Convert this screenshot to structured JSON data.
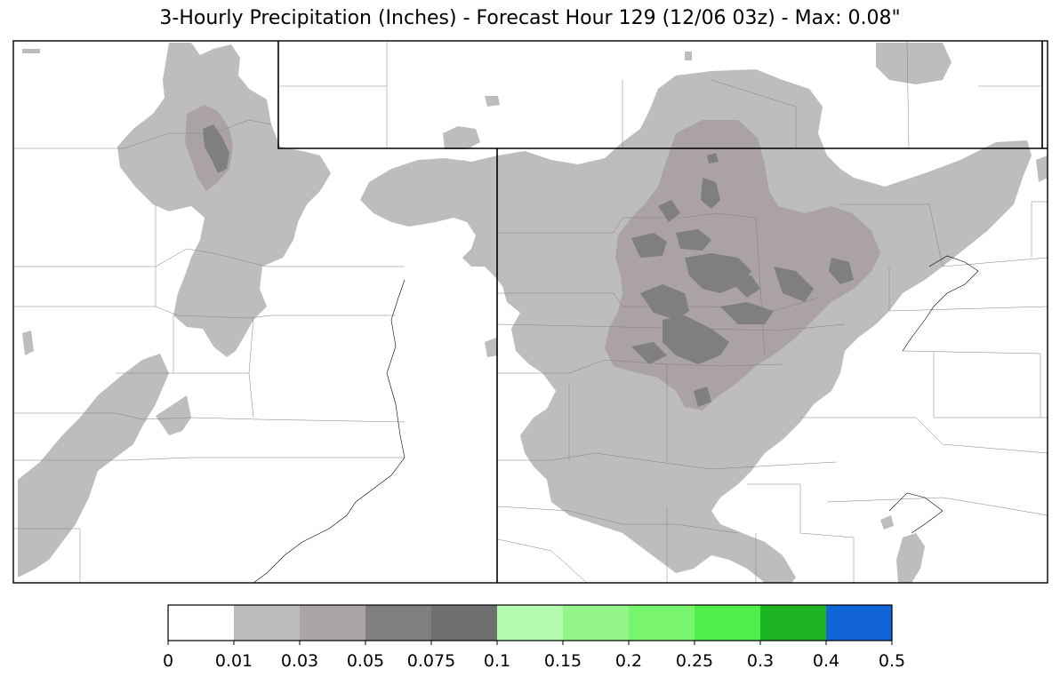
{
  "title": "3-Hourly Precipitation (Inches) - Forecast Hour 129 (12/06 03z) - Max: 0.08\"",
  "map": {
    "region": "central-united-states",
    "background_color": "#ffffff",
    "state_border_color": "#000000",
    "county_border_color": "#808080",
    "precip_field": [
      {
        "label": "0.01-0.03",
        "level": 1,
        "color": "#bdbebb"
      },
      {
        "label": "0.03-0.05",
        "level": 2,
        "color": "#aaa2a3"
      },
      {
        "label": "0.05-0.075",
        "level": 3,
        "color": "#7f7f7f"
      }
    ]
  },
  "colorbar": {
    "bins": [
      {
        "min": "0",
        "max": "0.01",
        "color": "#ffffff"
      },
      {
        "min": "0.01",
        "max": "0.03",
        "color": "#bcbcba"
      },
      {
        "min": "0.03",
        "max": "0.05",
        "color": "#aaa4a4"
      },
      {
        "min": "0.05",
        "max": "0.075",
        "color": "#7f7f7f"
      },
      {
        "min": "0.075",
        "max": "0.1",
        "color": "#6f6f6f"
      },
      {
        "min": "0.1",
        "max": "0.15",
        "color": "#b4fbb0"
      },
      {
        "min": "0.15",
        "max": "0.2",
        "color": "#94f68a"
      },
      {
        "min": "0.2",
        "max": "0.25",
        "color": "#78f46f"
      },
      {
        "min": "0.25",
        "max": "0.3",
        "color": "#50ef4b"
      },
      {
        "min": "0.3",
        "max": "0.4",
        "color": "#1db622"
      },
      {
        "min": "0.4",
        "max": "0.5",
        "color": "#1265d7"
      }
    ],
    "tick_labels": [
      "0",
      "0.01",
      "0.03",
      "0.05",
      "0.075",
      "0.1",
      "0.15",
      "0.2",
      "0.25",
      "0.3",
      "0.4",
      "0.5"
    ]
  }
}
